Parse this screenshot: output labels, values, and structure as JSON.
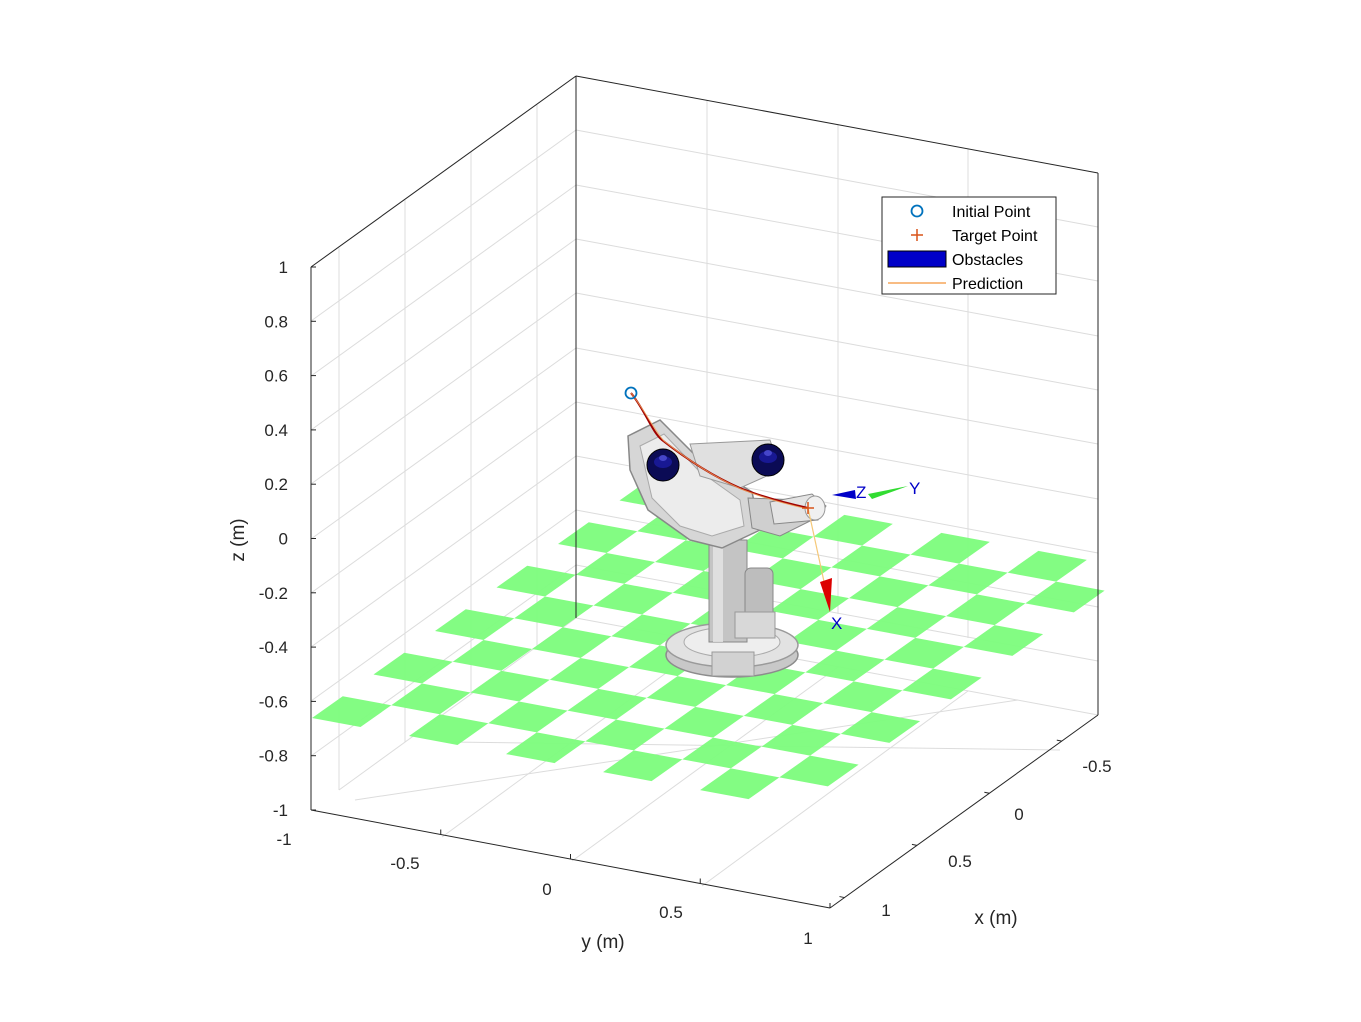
{
  "chart_data": {
    "type": "scatter3d",
    "xlabel": "x (m)",
    "ylabel": "y (m)",
    "zlabel": "z (m)",
    "xlim": [
      -0.75,
      1.1
    ],
    "ylim": [
      -1,
      1
    ],
    "zlim": [
      -1,
      1
    ],
    "x_ticks": [
      "-0.5",
      "0",
      "0.5",
      "1"
    ],
    "y_ticks": [
      "-1",
      "-0.5",
      "0",
      "0.5",
      "1"
    ],
    "z_ticks": [
      "1",
      "0.8",
      "0.6",
      "0.4",
      "0.2",
      "0",
      "-0.2",
      "-0.4",
      "-0.6",
      "-0.8",
      "-1"
    ],
    "grid": true,
    "legend_position": "top-right",
    "legend": [
      {
        "name": "Initial Point",
        "color": "#0072BD"
      },
      {
        "name": "Target Point",
        "color": "#D95319"
      },
      {
        "name": "Obstacles",
        "color": "#0000C8"
      },
      {
        "name": "Prediction",
        "color": "#F5A55A"
      }
    ],
    "initial_point": {
      "x": -0.6,
      "y": 0.55,
      "z": 0.4
    },
    "target_point": {
      "x": 0.3,
      "y": 0.25,
      "z": 0.0
    },
    "obstacles": [
      {
        "x": 0.3,
        "y": 0.05,
        "z": 0.2
      },
      {
        "x": -0.45,
        "y": 0.15,
        "z": 0.35
      }
    ],
    "trajectory_color": "#A00000",
    "prediction_color": "#F5A55A",
    "end_effector_frame_labels": [
      "Z",
      "Y",
      "X"
    ],
    "end_effector_frame_colors": {
      "Z": "#0000C8",
      "Y": "#32DC32",
      "X": "#DC0000"
    },
    "floor_color": "#7CFC7C"
  }
}
